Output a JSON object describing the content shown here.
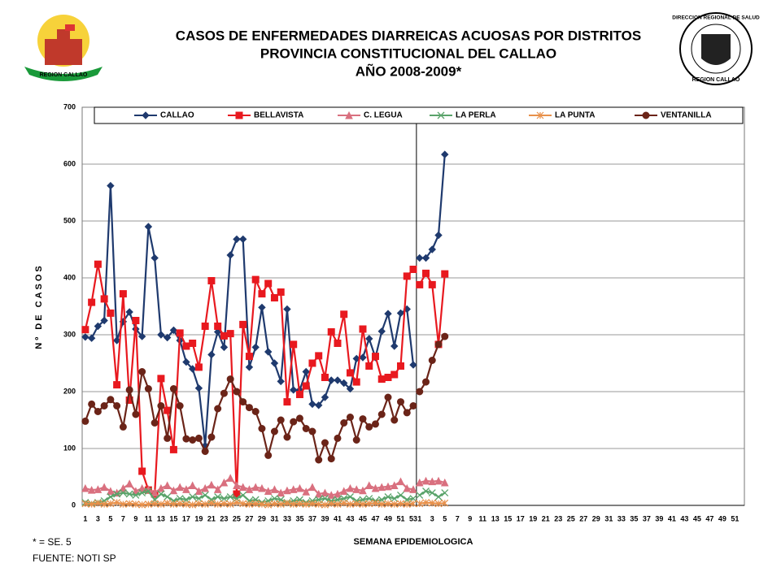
{
  "header_logos": [
    "REGION CALLAO",
    "DIRECCION REGIONAL DE SALUD",
    "REGION CALLAO"
  ],
  "chart_data": {
    "type": "line",
    "title": "CASOS DE ENFERMEDADES DIARREICAS ACUOSAS POR DISTRITOS",
    "subtitle": [
      "PROVINCIA CONSTITUCIONAL DEL CALLAO",
      "AÑO 2008-2009*"
    ],
    "xlabel": "SEMANA EPIDEMIOLOGICA",
    "ylabel": "Nº DE CASOS",
    "notes": [
      "* = SE. 5",
      "FUENTE: NOTI SP"
    ],
    "ylim": [
      0,
      700
    ],
    "yticks": [
      0,
      100,
      200,
      300,
      400,
      500,
      600,
      700
    ],
    "grid": true,
    "legend": "top",
    "categories": [
      "1",
      null,
      "3",
      null,
      "5",
      null,
      "7",
      null,
      "9",
      null,
      "11",
      null,
      "13",
      null,
      "15",
      null,
      "17",
      null,
      "19",
      null,
      "21",
      null,
      "23",
      null,
      "25",
      null,
      "27",
      null,
      "29",
      null,
      "31",
      null,
      "33",
      null,
      "35",
      null,
      "37",
      null,
      "39",
      null,
      "41",
      null,
      "43",
      null,
      "45",
      null,
      "47",
      null,
      "49",
      null,
      "51",
      null,
      "53",
      "1",
      null,
      "3",
      null,
      "5",
      null,
      "7",
      null,
      "9",
      null,
      "11",
      null,
      "13",
      null,
      "15",
      null,
      "17",
      null,
      "19",
      null,
      "21",
      null,
      "23",
      null,
      "25",
      null,
      "27",
      null,
      "29",
      null,
      "31",
      null,
      "33",
      null,
      "35",
      null,
      "37",
      null,
      "39",
      null,
      "41",
      null,
      "43",
      null,
      "45",
      null,
      "47",
      null,
      "49",
      null,
      "51",
      null
    ],
    "series": [
      {
        "name": "CALLAO",
        "color": "#1f3a6e",
        "marker": "diamond",
        "values": [
          296,
          294,
          315,
          325,
          562,
          290,
          323,
          340,
          310,
          297,
          490,
          435,
          300,
          295,
          308,
          290,
          252,
          240,
          206,
          105,
          265,
          305,
          278,
          440,
          468,
          468,
          243,
          278,
          348,
          270,
          250,
          218,
          345,
          203,
          203,
          235,
          178,
          176,
          190,
          220,
          220,
          215,
          205,
          258,
          260,
          293,
          260,
          306,
          337,
          280,
          338,
          345,
          247,
          435,
          435,
          450,
          475,
          617,
          null,
          null,
          null,
          null,
          null,
          null,
          null,
          null,
          null,
          null,
          null,
          null,
          null,
          null,
          null,
          null,
          null,
          null,
          null,
          null,
          null,
          null,
          null,
          null,
          null,
          null,
          null,
          null,
          null,
          null,
          null,
          null,
          null,
          null,
          null,
          null,
          null,
          null,
          null,
          null,
          null,
          null,
          null,
          null,
          null,
          null,
          null
        ]
      },
      {
        "name": "BELLAVISTA",
        "color": "#e8191f",
        "marker": "square",
        "values": [
          309,
          357,
          424,
          363,
          338,
          212,
          372,
          185,
          325,
          60,
          27,
          20,
          223,
          167,
          98,
          303,
          280,
          285,
          243,
          315,
          395,
          315,
          298,
          302,
          20,
          318,
          262,
          397,
          372,
          390,
          365,
          375,
          182,
          283,
          195,
          210,
          250,
          263,
          225,
          305,
          285,
          336,
          233,
          217,
          310,
          245,
          262,
          222,
          225,
          230,
          245,
          403,
          415,
          388,
          408,
          388,
          283,
          407,
          null,
          null,
          null,
          null,
          null,
          null,
          null,
          null,
          null,
          null,
          null,
          null,
          null,
          null,
          null,
          null,
          null,
          null,
          null,
          null,
          null,
          null,
          null,
          null,
          null,
          null,
          null,
          null,
          null,
          null,
          null,
          null,
          null,
          null,
          null,
          null,
          null,
          null,
          null,
          null,
          null,
          null,
          null,
          null,
          null,
          null,
          null
        ]
      },
      {
        "name": "C. LEGUA",
        "color": "#d9707f",
        "marker": "triangle",
        "values": [
          30,
          27,
          28,
          32,
          25,
          22,
          30,
          38,
          25,
          30,
          28,
          22,
          30,
          35,
          26,
          32,
          28,
          35,
          25,
          30,
          36,
          28,
          40,
          48,
          35,
          32,
          28,
          32,
          30,
          25,
          28,
          22,
          26,
          28,
          30,
          24,
          32,
          20,
          22,
          18,
          20,
          25,
          30,
          28,
          26,
          35,
          30,
          32,
          33,
          35,
          42,
          30,
          28,
          40,
          43,
          42,
          43,
          40,
          null,
          null,
          null,
          null,
          null,
          null,
          null,
          null,
          null,
          null,
          null,
          null,
          null,
          null,
          null,
          null,
          null,
          null,
          null,
          null,
          null,
          null,
          null,
          null,
          null,
          null,
          null,
          null,
          null,
          null,
          null,
          null,
          null,
          null,
          null,
          null,
          null,
          null,
          null,
          null,
          null,
          null,
          null,
          null,
          null,
          null,
          null
        ]
      },
      {
        "name": "LA PERLA",
        "color": "#5aa36a",
        "marker": "x",
        "values": [
          5,
          3,
          5,
          8,
          15,
          20,
          22,
          20,
          18,
          22,
          25,
          10,
          20,
          15,
          8,
          12,
          10,
          15,
          12,
          18,
          10,
          15,
          12,
          15,
          12,
          18,
          8,
          10,
          5,
          8,
          12,
          10,
          5,
          8,
          10,
          5,
          8,
          10,
          12,
          8,
          10,
          12,
          15,
          8,
          10,
          12,
          8,
          10,
          15,
          12,
          18,
          10,
          12,
          18,
          25,
          22,
          15,
          22,
          null,
          null,
          null,
          null,
          null,
          null,
          null,
          null,
          null,
          null,
          null,
          null,
          null,
          null,
          null,
          null,
          null,
          null,
          null,
          null,
          null,
          null,
          null,
          null,
          null,
          null,
          null,
          null,
          null,
          null,
          null,
          null,
          null,
          null,
          null,
          null,
          null,
          null,
          null,
          null,
          null,
          null,
          null,
          null,
          null,
          null,
          null
        ]
      },
      {
        "name": "LA PUNTA",
        "color": "#e8904a",
        "marker": "star",
        "values": [
          3,
          2,
          4,
          2,
          3,
          5,
          2,
          3,
          2,
          1,
          2,
          3,
          2,
          4,
          2,
          3,
          2,
          1,
          3,
          2,
          4,
          2,
          3,
          2,
          5,
          3,
          2,
          3,
          2,
          1,
          3,
          2,
          4,
          2,
          3,
          2,
          3,
          2,
          1,
          3,
          2,
          4,
          2,
          3,
          2,
          3,
          4,
          2,
          3,
          2,
          3,
          2,
          3,
          3,
          5,
          4,
          3,
          4,
          null,
          null,
          null,
          null,
          null,
          null,
          null,
          null,
          null,
          null,
          null,
          null,
          null,
          null,
          null,
          null,
          null,
          null,
          null,
          null,
          null,
          null,
          null,
          null,
          null,
          null,
          null,
          null,
          null,
          null,
          null,
          null,
          null,
          null,
          null,
          null,
          null,
          null,
          null,
          null,
          null,
          null,
          null,
          null,
          null,
          null,
          null
        ]
      },
      {
        "name": "VENTANILLA",
        "color": "#6b2418",
        "marker": "circle",
        "values": [
          148,
          178,
          165,
          175,
          186,
          175,
          138,
          203,
          160,
          235,
          205,
          145,
          175,
          118,
          205,
          175,
          117,
          115,
          118,
          95,
          120,
          170,
          197,
          222,
          200,
          182,
          172,
          165,
          135,
          88,
          130,
          150,
          120,
          147,
          153,
          135,
          130,
          80,
          110,
          82,
          118,
          145,
          155,
          115,
          152,
          138,
          143,
          160,
          190,
          150,
          182,
          163,
          175,
          200,
          217,
          255,
          283,
          297,
          null,
          null,
          null,
          null,
          null,
          null,
          null,
          null,
          null,
          null,
          null,
          null,
          null,
          null,
          null,
          null,
          null,
          null,
          null,
          null,
          null,
          null,
          null,
          null,
          null,
          null,
          null,
          null,
          null,
          null,
          null,
          null,
          null,
          null,
          null,
          null,
          null,
          null,
          null,
          null,
          null,
          null,
          null,
          null,
          null,
          null,
          null
        ]
      }
    ]
  }
}
